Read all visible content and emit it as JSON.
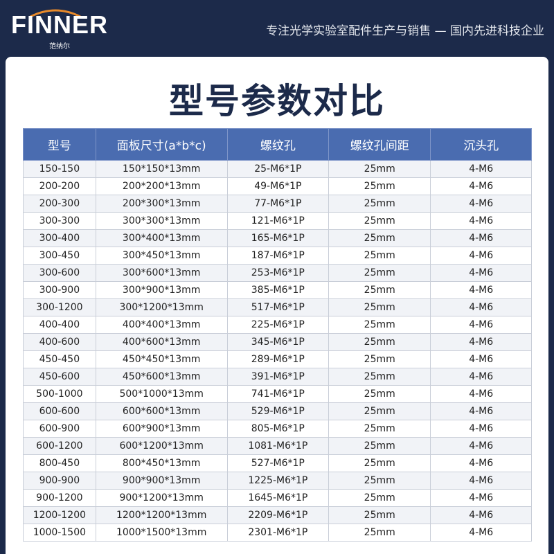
{
  "header": {
    "logo": "FINNER",
    "logo_sub": "范纳尔",
    "tagline": "专注光学实验室配件生产与销售 — 国内先进科技企业"
  },
  "title": "型号参数对比",
  "table": {
    "columns": [
      "型号",
      "面板尺寸(a*b*c)",
      "螺纹孔",
      "螺纹孔间距",
      "沉头孔"
    ],
    "rows": [
      [
        "150-150",
        "150*150*13mm",
        "25-M6*1P",
        "25mm",
        "4-M6"
      ],
      [
        "200-200",
        "200*200*13mm",
        "49-M6*1P",
        "25mm",
        "4-M6"
      ],
      [
        "200-300",
        "200*300*13mm",
        "77-M6*1P",
        "25mm",
        "4-M6"
      ],
      [
        "300-300",
        "300*300*13mm",
        "121-M6*1P",
        "25mm",
        "4-M6"
      ],
      [
        "300-400",
        "300*400*13mm",
        "165-M6*1P",
        "25mm",
        "4-M6"
      ],
      [
        "300-450",
        "300*450*13mm",
        "187-M6*1P",
        "25mm",
        "4-M6"
      ],
      [
        "300-600",
        "300*600*13mm",
        "253-M6*1P",
        "25mm",
        "4-M6"
      ],
      [
        "300-900",
        "300*900*13mm",
        "385-M6*1P",
        "25mm",
        "4-M6"
      ],
      [
        "300-1200",
        "300*1200*13mm",
        "517-M6*1P",
        "25mm",
        "4-M6"
      ],
      [
        "400-400",
        "400*400*13mm",
        "225-M6*1P",
        "25mm",
        "4-M6"
      ],
      [
        "400-600",
        "400*600*13mm",
        "345-M6*1P",
        "25mm",
        "4-M6"
      ],
      [
        "450-450",
        "450*450*13mm",
        "289-M6*1P",
        "25mm",
        "4-M6"
      ],
      [
        "450-600",
        "450*600*13mm",
        "391-M6*1P",
        "25mm",
        "4-M6"
      ],
      [
        "500-1000",
        "500*1000*13mm",
        "741-M6*1P",
        "25mm",
        "4-M6"
      ],
      [
        "600-600",
        "600*600*13mm",
        "529-M6*1P",
        "25mm",
        "4-M6"
      ],
      [
        "600-900",
        "600*900*13mm",
        "805-M6*1P",
        "25mm",
        "4-M6"
      ],
      [
        "600-1200",
        "600*1200*13mm",
        "1081-M6*1P",
        "25mm",
        "4-M6"
      ],
      [
        "800-450",
        "800*450*13mm",
        "527-M6*1P",
        "25mm",
        "4-M6"
      ],
      [
        "900-900",
        "900*900*13mm",
        "1225-M6*1P",
        "25mm",
        "4-M6"
      ],
      [
        "900-1200",
        "900*1200*13mm",
        "1645-M6*1P",
        "25mm",
        "4-M6"
      ],
      [
        "1200-1200",
        "1200*1200*13mm",
        "2209-M6*1P",
        "25mm",
        "4-M6"
      ],
      [
        "1000-1500",
        "1000*1500*13mm",
        "2301-M6*1P",
        "25mm",
        "4-M6"
      ]
    ]
  }
}
